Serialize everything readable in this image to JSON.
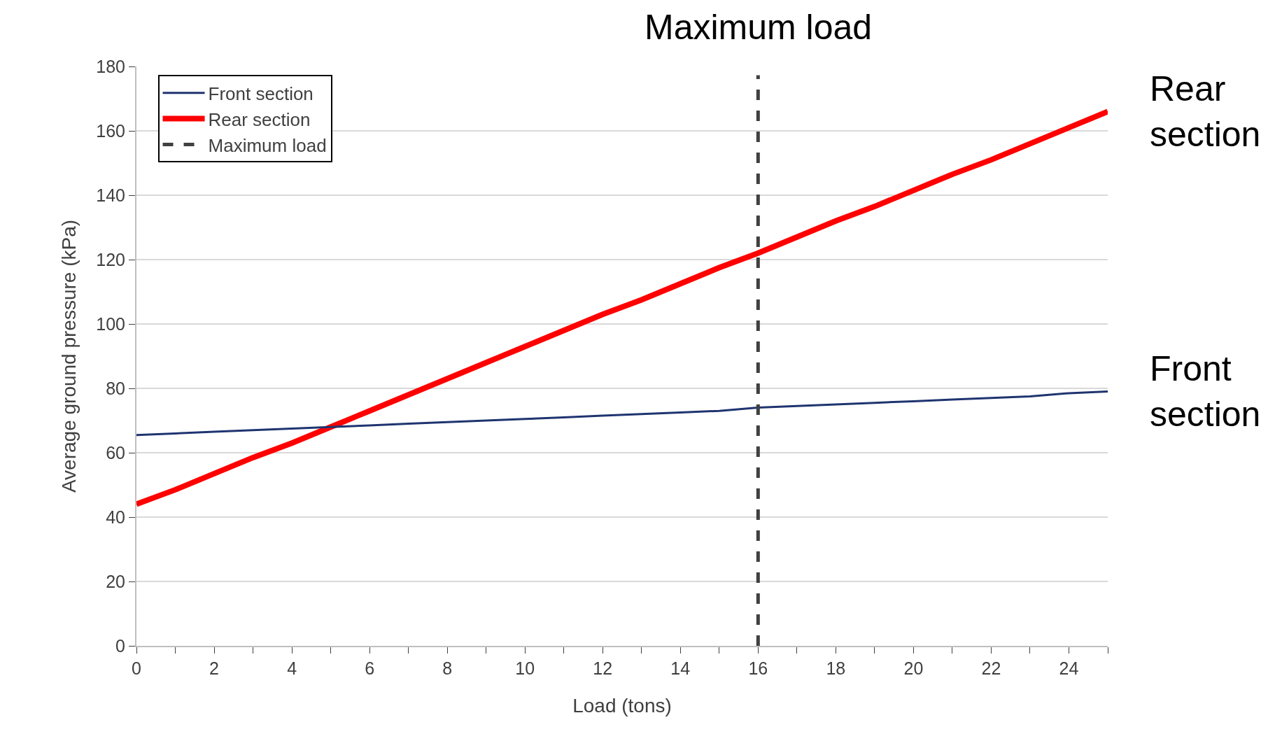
{
  "chart_data": {
    "type": "line",
    "xlabel": "Load (tons)",
    "ylabel": "Average ground pressure (kPa)",
    "x": [
      0,
      1,
      2,
      3,
      4,
      5,
      6,
      7,
      8,
      9,
      10,
      11,
      12,
      13,
      14,
      15,
      16,
      17,
      18,
      19,
      20,
      21,
      22,
      23,
      24,
      25
    ],
    "series": [
      {
        "name": "Front section",
        "color": "#1f3470",
        "values": [
          65.5,
          66,
          66.5,
          67,
          67.5,
          68,
          68.5,
          69,
          69.5,
          70,
          70.5,
          71,
          71.5,
          72,
          72.5,
          73,
          74,
          74.5,
          75,
          75.5,
          76,
          76.5,
          77,
          77.5,
          78.5,
          79
        ]
      },
      {
        "name": "Rear section",
        "color": "#ff0000",
        "values": [
          44,
          48.5,
          53.5,
          58.5,
          63,
          68,
          73,
          78,
          83,
          88,
          93,
          98,
          103,
          107.5,
          112.5,
          117.5,
          122,
          127,
          132,
          136.5,
          141.5,
          146.5,
          151,
          156,
          161,
          166
        ]
      }
    ],
    "ref_lines": [
      {
        "axis": "x",
        "value": 16,
        "label": "Maximum load",
        "color": "#404040",
        "line_style": "dashed"
      }
    ],
    "annotations": [
      {
        "text": "Rear section",
        "x": 25,
        "y": 166
      },
      {
        "text": "Front section",
        "x": 25,
        "y": 79
      }
    ],
    "xlim": [
      0,
      25
    ],
    "xticks": [
      0,
      {
        "value": 1,
        "label": null
      },
      2,
      {
        "value": 3,
        "label": null
      },
      4,
      {
        "value": 5,
        "label": null
      },
      6,
      {
        "value": 7,
        "label": null
      },
      8,
      {
        "value": 9,
        "label": null
      },
      10,
      {
        "value": 11,
        "label": null
      },
      12,
      {
        "value": 13,
        "label": null
      },
      14,
      {
        "value": 15,
        "label": null
      },
      16,
      {
        "value": 17,
        "label": null
      },
      18,
      {
        "value": 19,
        "label": null
      },
      20,
      {
        "value": 21,
        "label": null
      },
      22,
      {
        "value": 23,
        "label": null
      },
      24,
      {
        "value": 25,
        "label": null
      }
    ],
    "ylim": [
      0,
      180
    ],
    "yticks": [
      0,
      20,
      40,
      60,
      80,
      100,
      120,
      140,
      160,
      180
    ],
    "grid": "y",
    "legend": "top left",
    "marker": "none",
    "line_style": "solid"
  }
}
